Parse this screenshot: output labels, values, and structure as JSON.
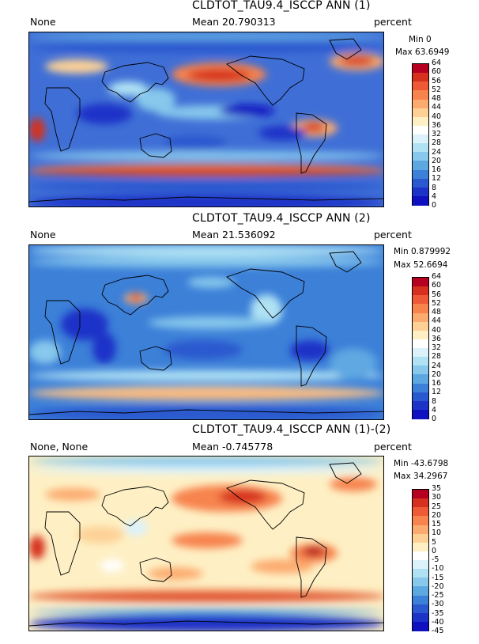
{
  "panels": [
    {
      "title": "CLDTOT_TAU9.4_ISCCP ANN (1)",
      "left_label": "None",
      "mean_label": "Mean 20.790313",
      "units": "percent",
      "min_label": "Min 0",
      "max_label": "Max 63.6949",
      "variant": "abs1"
    },
    {
      "title": "CLDTOT_TAU9.4_ISCCP ANN (2)",
      "left_label": "None",
      "mean_label": "Mean 21.536092",
      "units": "percent",
      "min_label": "Min 0.879992",
      "max_label": "Max 52.6694",
      "variant": "abs2"
    },
    {
      "title": "CLDTOT_TAU9.4_ISCCP ANN (1)-(2)",
      "left_label": "None, None",
      "mean_label": "Mean -0.745778",
      "units": "percent",
      "min_label": "Min -43.6798",
      "max_label": "Max 34.2967",
      "variant": "diff"
    }
  ],
  "colorbars": {
    "abs": {
      "ticks": [
        "64",
        "60",
        "56",
        "52",
        "48",
        "44",
        "40",
        "36",
        "32",
        "28",
        "24",
        "20",
        "16",
        "12",
        "8",
        "4",
        "0"
      ],
      "colors": [
        "#b5001f",
        "#d6301f",
        "#ee5a36",
        "#f7834d",
        "#fcab70",
        "#fdd196",
        "#fef0c4",
        "#ffffff",
        "#dbf2fb",
        "#b0e2f4",
        "#87c8ec",
        "#5ea8e2",
        "#3c80d8",
        "#2a58cf",
        "#1d33c8",
        "#0f10c0"
      ]
    },
    "diff": {
      "ticks": [
        "35",
        "30",
        "25",
        "20",
        "15",
        "10",
        "5",
        "0",
        "-5",
        "-10",
        "-15",
        "-20",
        "-25",
        "-30",
        "-35",
        "-40",
        "-45"
      ],
      "colors": [
        "#b5001f",
        "#d6301f",
        "#ee5a36",
        "#f7834d",
        "#fcab70",
        "#fdd196",
        "#fef0c4",
        "#ffffff",
        "#dbf2fb",
        "#b0e2f4",
        "#87c8ec",
        "#5ea8e2",
        "#3c80d8",
        "#2a58cf",
        "#1d33c8",
        "#0f10c0"
      ]
    }
  },
  "chart_data": [
    {
      "type": "heatmap",
      "title": "CLDTOT_TAU9.4_ISCCP ANN (1)",
      "units": "percent",
      "mean": 20.790313,
      "min": 0,
      "max": 63.6949,
      "colorbar_levels": [
        0,
        4,
        8,
        12,
        16,
        20,
        24,
        28,
        32,
        36,
        40,
        44,
        48,
        52,
        56,
        60,
        64
      ],
      "projection": "global cylindrical (Pacific-centered)"
    },
    {
      "type": "heatmap",
      "title": "CLDTOT_TAU9.4_ISCCP ANN (2)",
      "units": "percent",
      "mean": 21.536092,
      "min": 0.879992,
      "max": 52.6694,
      "colorbar_levels": [
        0,
        4,
        8,
        12,
        16,
        20,
        24,
        28,
        32,
        36,
        40,
        44,
        48,
        52,
        56,
        60,
        64
      ],
      "projection": "global cylindrical (Pacific-centered)"
    },
    {
      "type": "heatmap",
      "title": "CLDTOT_TAU9.4_ISCCP ANN (1)-(2)",
      "units": "percent",
      "mean": -0.745778,
      "min": -43.6798,
      "max": 34.2967,
      "colorbar_levels": [
        -45,
        -40,
        -35,
        -30,
        -25,
        -20,
        -15,
        -10,
        -5,
        0,
        5,
        10,
        15,
        20,
        25,
        30,
        35
      ],
      "projection": "global cylindrical (Pacific-centered)"
    }
  ]
}
